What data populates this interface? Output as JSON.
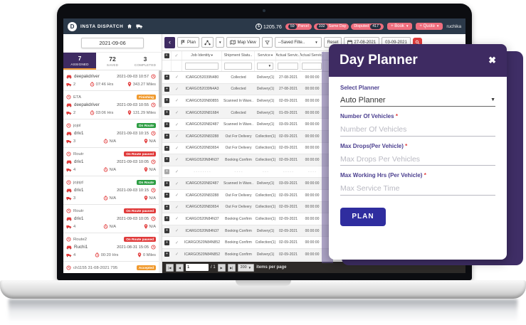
{
  "topbar": {
    "brand": "Insta Dispatch",
    "balance": "1205.76",
    "badges": [
      {
        "count": "59",
        "label": "Parcel"
      },
      {
        "count": "332",
        "label": "Same Day"
      },
      {
        "count": "417",
        "label": "Disputed"
      }
    ],
    "book_label": "+ Book",
    "quote_label": "+ Quote",
    "user": "ruchika"
  },
  "sidebar": {
    "date": "2021-09-06",
    "tabs": [
      {
        "count": "7",
        "label": "ASSIGNED"
      },
      {
        "count": "72",
        "label": "SAVED"
      },
      {
        "count": "3",
        "label": "COMPLETED"
      }
    ],
    "drivers": [
      {
        "name": "deepakdriver",
        "datetime": "2021-09-03 10:57",
        "vehicles": "2",
        "hours": "07:46 Hrs",
        "miles": "343.27 Miles"
      },
      {
        "route": "ETA",
        "badge": "Finishing",
        "badge_color": "orange",
        "name": "deepakdriver",
        "datetime": "2021-09-03 10:55",
        "vehicles": "2",
        "hours": "03:06 Hrs",
        "miles": "131.29 Miles"
      },
      {
        "route": "jojol",
        "badge": "On Route",
        "badge_color": "green",
        "name": "driv1",
        "datetime": "2021-09-03 10:15",
        "vehicles": "3",
        "hours": "N/A",
        "miles": "N/A"
      },
      {
        "route": "Routr",
        "badge": "On Route paused",
        "badge_color": "red",
        "name": "driv1",
        "datetime": "2021-09-03 10:05",
        "vehicles": "4",
        "hours": "N/A",
        "miles": "N/A"
      },
      {
        "route": "jojojd",
        "badge": "On Route",
        "badge_color": "green",
        "name": "driv1",
        "datetime": "2021-09-03 10:15",
        "vehicles": "3",
        "hours": "N/A",
        "miles": "N/A"
      },
      {
        "route": "Routr",
        "badge": "On Route paused",
        "badge_color": "red",
        "name": "driv1",
        "datetime": "2021-09-03 10:05",
        "vehicles": "4",
        "hours": "N/A",
        "miles": "N/A"
      },
      {
        "route": "Route2",
        "badge": "On Route paused",
        "badge_color": "red",
        "name": "Ruchi1",
        "datetime": "2021-08-31 15:05",
        "vehicles": "4",
        "hours": "00:20 Hrs",
        "miles": "0 Miles"
      },
      {
        "route": "ch1155 31-08-2021 795",
        "badge": "Accepted",
        "badge_color": "orange"
      }
    ]
  },
  "toolbar": {
    "plan": "Plan",
    "map_view": "Map View",
    "saved_filter": "--Saved Filte..",
    "reset": "Reset",
    "date_from": "27-08-2021",
    "date_to": "03-09-2021"
  },
  "table": {
    "columns": [
      "Job Identity",
      "Shipment Statu..",
      "Service",
      "Actual Servic..",
      "Actual Servic.."
    ],
    "rows": [
      [
        "ICARGO52039N480",
        "Collected",
        "Delivery(1)",
        "27-08-2021",
        "00:00:00"
      ],
      [
        "ICARGO52039N4A3",
        "Collected",
        "Delivery(1)",
        "27-08-2021",
        "00:00:00"
      ],
      [
        "ICARGO520N80855",
        "Scanned In Ware..",
        "Delivery(1)",
        "02-09-2021",
        "00:00:00"
      ],
      [
        "ICARGO520N81684",
        "Collected",
        "Delivery(1)",
        "01-09-2021",
        "00:00:00"
      ],
      [
        "ICARGO520N82487",
        "Scanned In Ware..",
        "Delivery(1)",
        "03-09-2021",
        "00:00:00"
      ],
      [
        "ICARGO520N83288",
        "Out For Delivery",
        "Collection(1)",
        "02-09-2021",
        "00:00:00"
      ],
      [
        "ICARGO520N83654",
        "Out For Delivery",
        "Collection(1)",
        "02-09-2021",
        "00:00:00"
      ],
      [
        "ICARGO520N84N37",
        "Booking Confirm",
        "Collection(1)",
        "02-09-2021",
        "00:00:00"
      ],
      [
        "- - - - - - - -",
        "- - - -",
        "- - -",
        "- - - - -",
        "- - - -"
      ],
      [
        "ICARGO520N82487",
        "Scanned In Ware..",
        "Delivery(1)",
        "03-09-2021",
        "00:00:00"
      ],
      [
        "ICARGO520N83288",
        "Out For Delivery",
        "Collection(1)",
        "02-09-2021",
        "00:00:00"
      ],
      [
        "ICARGO520N83654",
        "Out For Delivery",
        "Collection(1)",
        "02-09-2021",
        "00:00:00"
      ],
      [
        "ICARGO520N84N37",
        "Booking Confirm",
        "Collection(1)",
        "02-09-2021",
        "00:00:00"
      ],
      [
        "ICARGO520N84N37",
        "Booking Confirm",
        "Delivery(1)",
        "02-09-2021",
        "00:00:00"
      ],
      [
        "ICARGO520N84N852",
        "Booking Confirm",
        "Collection(1)",
        "02-09-2021",
        "00:00:00"
      ],
      [
        "ICARGO520N84N852",
        "Booking Confirm",
        "Delivery(1)",
        "02-09-2021",
        "00:00:00"
      ]
    ]
  },
  "pagination": {
    "page": "1",
    "total": "/ 1",
    "page_size": "200",
    "items_label": "items per page"
  },
  "modal": {
    "title": "Day Planner",
    "close": "✖",
    "select_planner_label": "Select Planner",
    "planner_value": "Auto Planner",
    "vehicles_label": "Number Of Vehicles",
    "vehicles_placeholder": "Number Of Vehicles",
    "drops_label": "Max Drops(Per Vehicle)",
    "drops_placeholder": "Max Drops Per Vehicles",
    "hours_label": "Max Working Hrs (Per Vehicle)",
    "hours_placeholder": "Max Service Time",
    "plan_button": "PLAN"
  },
  "colors": {
    "topbar": "#2b3949",
    "accent_salmon": "#ef6e7e",
    "purple": "#3e2b62",
    "indigo": "#2f2d9f",
    "orange": "#f09a2e",
    "green": "#2e9e44",
    "red": "#e03a3a"
  }
}
